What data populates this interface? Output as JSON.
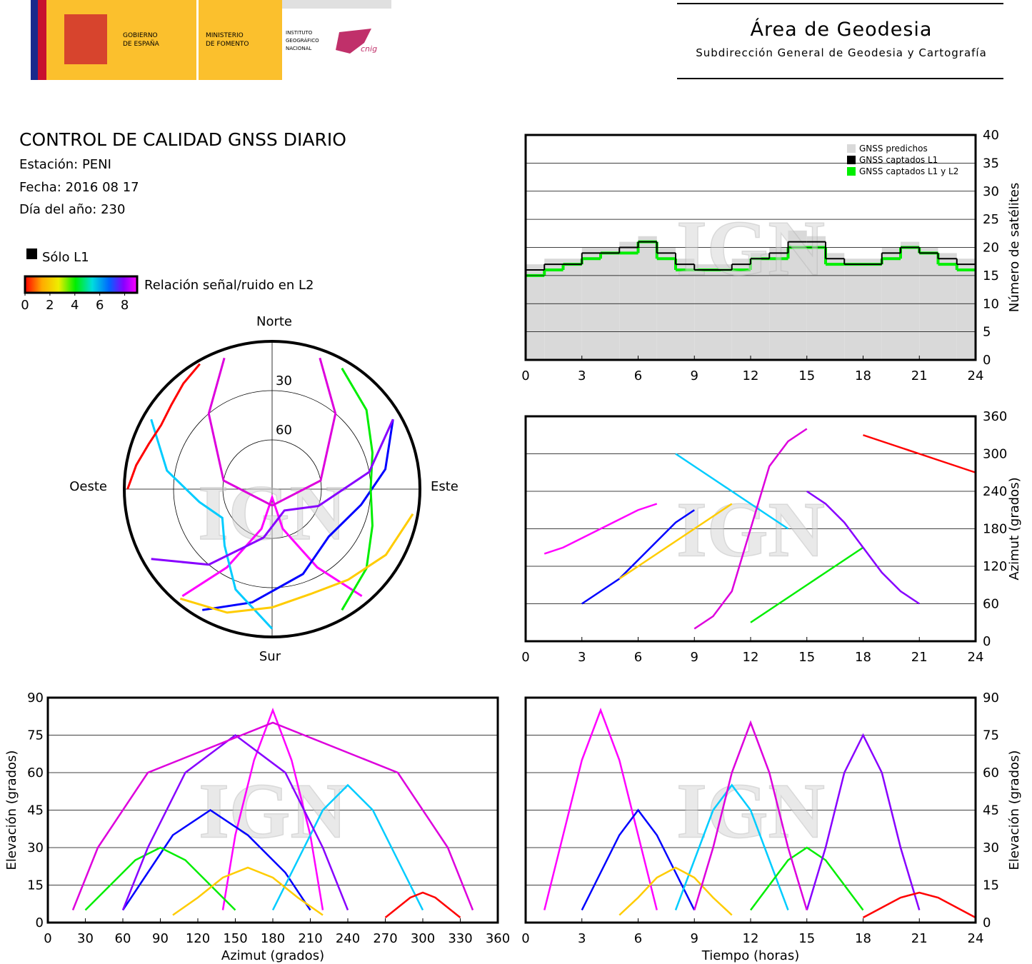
{
  "header": {
    "gov": [
      "GOBIERNO",
      "DE ESPAÑA"
    ],
    "ministry": [
      "MINISTERIO",
      "DE FOMENTO"
    ],
    "ign": [
      "INSTITUTO",
      "GEOGRÁFICO",
      "NACIONAL"
    ],
    "cnig": "cnig",
    "area": "Área de Geodesia",
    "subdirection": "Subdirección General de Geodesia y Cartografía"
  },
  "report": {
    "title": "CONTROL DE CALIDAD GNSS DIARIO",
    "station": "Estación: PENI",
    "date": "Fecha: 2016 08 17",
    "doy": "Día del año: 230"
  },
  "legend": {
    "l1_only": "Sólo L1",
    "l1_color": "#000000",
    "snr_title": "Relación señal/ruido en L2",
    "snr_ticks": [
      0,
      2,
      4,
      6,
      8
    ],
    "snr_lim": [
      0,
      9
    ]
  },
  "watermark": "IGN",
  "chart_data": [
    {
      "type": "polar",
      "labels": {
        "north": "Norte",
        "south": "Sur",
        "west": "Oeste",
        "east": "Este"
      },
      "rlim": [
        90,
        0
      ],
      "rticks": [
        30,
        60
      ],
      "series": [
        {
          "color": "#ff00ff",
          "azimuth": [
            140,
            150,
            165,
            180,
            195,
            210,
            220
          ],
          "values": [
            5,
            35,
            65,
            85,
            65,
            35,
            5
          ]
        },
        {
          "color": "#0000ff",
          "azimuth": [
            60,
            80,
            100,
            130,
            160,
            190,
            210
          ],
          "values": [
            5,
            20,
            35,
            45,
            35,
            20,
            5
          ]
        },
        {
          "color": "#00ccff",
          "azimuth": [
            300,
            280,
            260,
            240,
            220,
            200,
            180
          ],
          "values": [
            5,
            25,
            45,
            55,
            45,
            25,
            5
          ]
        },
        {
          "color": "#00ee00",
          "azimuth": [
            30,
            50,
            70,
            90,
            110,
            130,
            150
          ],
          "values": [
            5,
            15,
            25,
            30,
            25,
            15,
            5
          ]
        },
        {
          "color": "#8800ff",
          "azimuth": [
            240,
            220,
            190,
            150,
            110,
            80,
            60
          ],
          "values": [
            5,
            30,
            60,
            75,
            60,
            30,
            5
          ]
        },
        {
          "color": "#ff0000",
          "azimuth": [
            330,
            320,
            310,
            300,
            290,
            280,
            270
          ],
          "values": [
            2,
            6,
            10,
            12,
            10,
            6,
            2
          ]
        },
        {
          "color": "#ffcc00",
          "azimuth": [
            100,
            120,
            140,
            160,
            180,
            200,
            220
          ],
          "values": [
            3,
            10,
            18,
            22,
            18,
            10,
            3
          ]
        },
        {
          "color": "#dd00dd",
          "azimuth": [
            20,
            40,
            80,
            180,
            280,
            320,
            340
          ],
          "values": [
            5,
            30,
            60,
            80,
            60,
            30,
            5
          ]
        }
      ]
    },
    {
      "type": "step",
      "ylabel": "Número de satélites",
      "xlim": [
        0,
        24
      ],
      "ylim": [
        0,
        40
      ],
      "xticks": [
        0,
        3,
        6,
        9,
        12,
        15,
        18,
        21,
        24
      ],
      "yticks": [
        0,
        5,
        10,
        15,
        20,
        25,
        30,
        35,
        40
      ],
      "grid": true,
      "yaxis": "right",
      "legend": "upper right",
      "x": [
        0,
        1,
        2,
        3,
        4,
        5,
        6,
        7,
        8,
        9,
        10,
        11,
        12,
        13,
        14,
        15,
        16,
        17,
        18,
        19,
        20,
        21,
        22,
        23
      ],
      "series": [
        {
          "name": "GNSS predichos",
          "color": "#d9d9d9",
          "values": [
            17,
            18,
            18,
            20,
            20,
            21,
            22,
            20,
            18,
            17,
            17,
            18,
            19,
            20,
            23,
            22,
            19,
            18,
            18,
            20,
            21,
            20,
            19,
            18
          ]
        },
        {
          "name": "GNSS captados L1",
          "color": "#000000",
          "values": [
            16,
            17,
            17,
            19,
            19,
            20,
            21,
            19,
            17,
            16,
            16,
            17,
            18,
            19,
            21,
            21,
            18,
            17,
            17,
            19,
            20,
            19,
            18,
            17
          ]
        },
        {
          "name": "GNSS captados L1 y L2",
          "color": "#00ee00",
          "values": [
            15,
            16,
            17,
            18,
            19,
            19,
            21,
            18,
            16,
            16,
            16,
            16,
            18,
            18,
            20,
            20,
            17,
            17,
            17,
            18,
            20,
            19,
            17,
            16
          ]
        }
      ]
    },
    {
      "type": "line",
      "ylabel": "Azimut (grados)",
      "xlim": [
        0,
        24
      ],
      "ylim": [
        0,
        360
      ],
      "xticks": [
        0,
        3,
        6,
        9,
        12,
        15,
        18,
        21,
        24
      ],
      "yticks": [
        0,
        60,
        120,
        180,
        240,
        300,
        360
      ],
      "grid": true,
      "yaxis": "right",
      "series": [
        {
          "color": "#ff00ff",
          "x": [
            1,
            2,
            3,
            4,
            5,
            6,
            7
          ],
          "values": [
            140,
            150,
            165,
            180,
            195,
            210,
            220
          ]
        },
        {
          "color": "#0000ff",
          "x": [
            3,
            4,
            5,
            6,
            7,
            8,
            9
          ],
          "values": [
            60,
            80,
            100,
            130,
            160,
            190,
            210
          ]
        },
        {
          "color": "#00ccff",
          "x": [
            8,
            9,
            10,
            11,
            12,
            13,
            14
          ],
          "values": [
            300,
            280,
            260,
            240,
            220,
            200,
            180
          ]
        },
        {
          "color": "#00ee00",
          "x": [
            12,
            13,
            14,
            15,
            16,
            17,
            18
          ],
          "values": [
            30,
            50,
            70,
            90,
            110,
            130,
            150
          ]
        },
        {
          "color": "#8800ff",
          "x": [
            15,
            16,
            17,
            18,
            19,
            20,
            21
          ],
          "values": [
            240,
            220,
            190,
            150,
            110,
            80,
            60
          ]
        },
        {
          "color": "#ff0000",
          "x": [
            18,
            19,
            20,
            21,
            22,
            23,
            24
          ],
          "values": [
            330,
            320,
            310,
            300,
            290,
            280,
            270
          ]
        },
        {
          "color": "#ffcc00",
          "x": [
            5,
            6,
            7,
            8,
            9,
            10,
            11
          ],
          "values": [
            100,
            120,
            140,
            160,
            180,
            200,
            220
          ]
        },
        {
          "color": "#dd00dd",
          "x": [
            9,
            10,
            11,
            12,
            13,
            14,
            15
          ],
          "values": [
            20,
            40,
            80,
            180,
            280,
            320,
            340
          ]
        }
      ]
    },
    {
      "type": "line",
      "xlabel": "Azimut (grados)",
      "ylabel": "Elevación (grados)",
      "xlim": [
        0,
        360
      ],
      "ylim": [
        0,
        90
      ],
      "xticks": [
        0,
        30,
        60,
        90,
        120,
        150,
        180,
        210,
        240,
        270,
        300,
        330,
        360
      ],
      "yticks": [
        0,
        15,
        30,
        45,
        60,
        75,
        90
      ],
      "grid": true,
      "yaxis": "left",
      "series": [
        {
          "color": "#ff00ff",
          "x": [
            140,
            150,
            165,
            180,
            195,
            210,
            220
          ],
          "values": [
            5,
            35,
            65,
            85,
            65,
            35,
            5
          ]
        },
        {
          "color": "#0000ff",
          "x": [
            60,
            80,
            100,
            130,
            160,
            190,
            210
          ],
          "values": [
            5,
            20,
            35,
            45,
            35,
            20,
            5
          ]
        },
        {
          "color": "#00ccff",
          "x": [
            300,
            280,
            260,
            240,
            220,
            200,
            180
          ],
          "values": [
            5,
            25,
            45,
            55,
            45,
            25,
            5
          ]
        },
        {
          "color": "#00ee00",
          "x": [
            30,
            50,
            70,
            90,
            110,
            130,
            150
          ],
          "values": [
            5,
            15,
            25,
            30,
            25,
            15,
            5
          ]
        },
        {
          "color": "#8800ff",
          "x": [
            240,
            220,
            190,
            150,
            110,
            80,
            60
          ],
          "values": [
            5,
            30,
            60,
            75,
            60,
            30,
            5
          ]
        },
        {
          "color": "#ff0000",
          "x": [
            330,
            320,
            310,
            300,
            290,
            280,
            270
          ],
          "values": [
            2,
            6,
            10,
            12,
            10,
            6,
            2
          ]
        },
        {
          "color": "#ffcc00",
          "x": [
            100,
            120,
            140,
            160,
            180,
            200,
            220
          ],
          "values": [
            3,
            10,
            18,
            22,
            18,
            10,
            3
          ]
        },
        {
          "color": "#dd00dd",
          "x": [
            20,
            40,
            80,
            180,
            280,
            320,
            340
          ],
          "values": [
            5,
            30,
            60,
            80,
            60,
            30,
            5
          ]
        }
      ]
    },
    {
      "type": "line",
      "xlabel": "Tiempo (horas)",
      "ylabel": "Elevación (grados)",
      "xlim": [
        0,
        24
      ],
      "ylim": [
        0,
        90
      ],
      "xticks": [
        0,
        3,
        6,
        9,
        12,
        15,
        18,
        21,
        24
      ],
      "yticks": [
        0,
        15,
        30,
        45,
        60,
        75,
        90
      ],
      "grid": true,
      "yaxis": "right",
      "series": [
        {
          "color": "#ff00ff",
          "x": [
            1,
            2,
            3,
            4,
            5,
            6,
            7
          ],
          "values": [
            5,
            35,
            65,
            85,
            65,
            35,
            5
          ]
        },
        {
          "color": "#0000ff",
          "x": [
            3,
            4,
            5,
            6,
            7,
            8,
            9
          ],
          "values": [
            5,
            20,
            35,
            45,
            35,
            20,
            5
          ]
        },
        {
          "color": "#00ccff",
          "x": [
            8,
            9,
            10,
            11,
            12,
            13,
            14
          ],
          "values": [
            5,
            25,
            45,
            55,
            45,
            25,
            5
          ]
        },
        {
          "color": "#00ee00",
          "x": [
            12,
            13,
            14,
            15,
            16,
            17,
            18
          ],
          "values": [
            5,
            15,
            25,
            30,
            25,
            15,
            5
          ]
        },
        {
          "color": "#8800ff",
          "x": [
            15,
            16,
            17,
            18,
            19,
            20,
            21
          ],
          "values": [
            5,
            30,
            60,
            75,
            60,
            30,
            5
          ]
        },
        {
          "color": "#ff0000",
          "x": [
            18,
            19,
            20,
            21,
            22,
            23,
            24
          ],
          "values": [
            2,
            6,
            10,
            12,
            10,
            6,
            2
          ]
        },
        {
          "color": "#ffcc00",
          "x": [
            5,
            6,
            7,
            8,
            9,
            10,
            11
          ],
          "values": [
            3,
            10,
            18,
            22,
            18,
            10,
            3
          ]
        },
        {
          "color": "#dd00dd",
          "x": [
            9,
            10,
            11,
            12,
            13,
            14,
            15
          ],
          "values": [
            5,
            30,
            60,
            80,
            60,
            30,
            5
          ]
        }
      ]
    }
  ]
}
